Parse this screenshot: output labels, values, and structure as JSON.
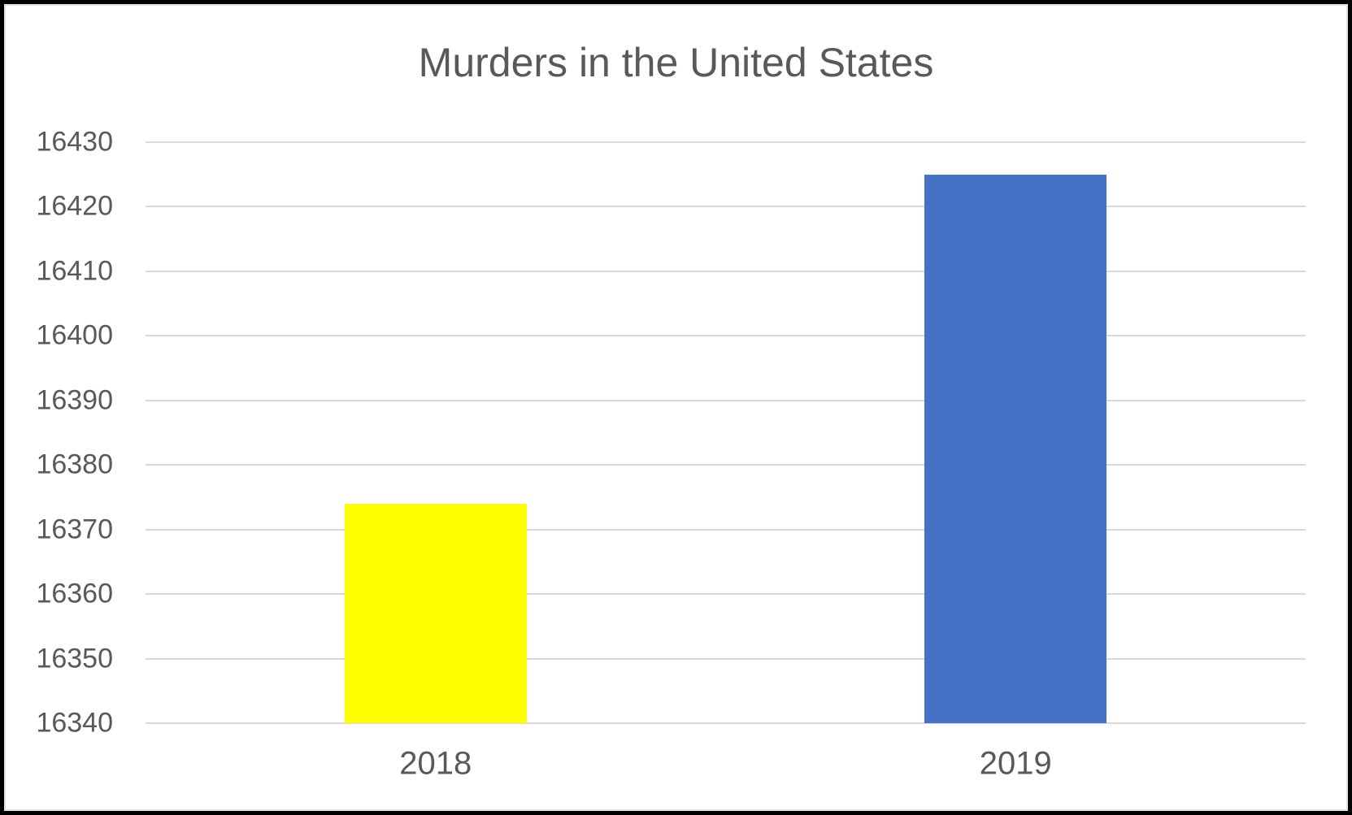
{
  "window": {
    "background_color": "#ffffff",
    "frame_color": "#000000",
    "chart_border_color": "#e2e2e2"
  },
  "chart_data": {
    "type": "bar",
    "title": "Murders in the United States",
    "categories": [
      "2018",
      "2019"
    ],
    "values": [
      16374,
      16425
    ],
    "bar_colors": [
      "#ffff00",
      "#4472c4"
    ],
    "xlabel": "",
    "ylabel": "",
    "ylim": [
      16340,
      16430
    ],
    "ytick_step": 10,
    "ytick_labels": [
      "16340",
      "16350",
      "16360",
      "16370",
      "16380",
      "16390",
      "16400",
      "16410",
      "16420",
      "16430"
    ],
    "grid": true,
    "legend": false,
    "gridline_color": "#d9d9d9",
    "text_color": "#595959"
  }
}
